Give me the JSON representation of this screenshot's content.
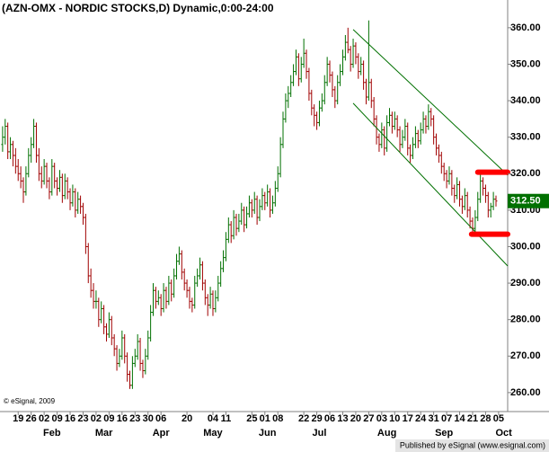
{
  "chart_data": {
    "type": "ohlc",
    "title": "(AZN-OMX - NORDIC STOCKS,D) Dynamic,0:00-24:00",
    "watermark": "© eSignal, 2009",
    "footer": "Published by eSignal (www.esignal.com)",
    "up_color": "#007000",
    "down_color": "#a00000",
    "ylim": [
      254.8,
      367.6
    ],
    "xlim": [
      -1,
      194.5
    ],
    "yticks": [
      {
        "value": 260,
        "label": "260.00"
      },
      {
        "value": 270,
        "label": "270.00"
      },
      {
        "value": 280,
        "label": "280.00"
      },
      {
        "value": 290,
        "label": "290.00"
      },
      {
        "value": 300,
        "label": "300.00"
      },
      {
        "value": 310,
        "label": "310.00"
      },
      {
        "value": 320,
        "label": "320.00"
      },
      {
        "value": 330,
        "label": "330.00"
      },
      {
        "value": 340,
        "label": "340.00"
      },
      {
        "value": 350,
        "label": "350.00"
      },
      {
        "value": 360,
        "label": "360.00"
      }
    ],
    "xticks": [
      {
        "value": 6,
        "label": "19"
      },
      {
        "value": 11,
        "label": "26"
      },
      {
        "value": 16,
        "label": "02"
      },
      {
        "value": 21,
        "label": "09"
      },
      {
        "value": 26,
        "label": "16"
      },
      {
        "value": 31,
        "label": "23"
      },
      {
        "value": 36,
        "label": "02"
      },
      {
        "value": 41,
        "label": "09"
      },
      {
        "value": 46,
        "label": "16"
      },
      {
        "value": 51,
        "label": "23"
      },
      {
        "value": 56,
        "label": "30"
      },
      {
        "value": 61,
        "label": "06"
      },
      {
        "value": 71,
        "label": "20"
      },
      {
        "value": 81,
        "label": "04"
      },
      {
        "value": 86,
        "label": "11"
      },
      {
        "value": 96,
        "label": "25"
      },
      {
        "value": 101,
        "label": "01"
      },
      {
        "value": 106,
        "label": "08"
      },
      {
        "value": 116,
        "label": "22"
      },
      {
        "value": 121,
        "label": "29"
      },
      {
        "value": 126,
        "label": "06"
      },
      {
        "value": 131,
        "label": "13"
      },
      {
        "value": 136,
        "label": "20"
      },
      {
        "value": 141,
        "label": "27"
      },
      {
        "value": 146,
        "label": "03"
      },
      {
        "value": 151,
        "label": "10"
      },
      {
        "value": 156,
        "label": "17"
      },
      {
        "value": 161,
        "label": "24"
      },
      {
        "value": 166,
        "label": "31"
      },
      {
        "value": 171,
        "label": "07"
      },
      {
        "value": 176,
        "label": "14"
      },
      {
        "value": 181,
        "label": "21"
      },
      {
        "value": 186,
        "label": "28"
      },
      {
        "value": 191,
        "label": "05"
      }
    ],
    "month_ticks": [
      {
        "value": 19,
        "label": "Feb"
      },
      {
        "value": 39,
        "label": "Mar"
      },
      {
        "value": 61,
        "label": "Apr"
      },
      {
        "value": 81,
        "label": "May"
      },
      {
        "value": 102,
        "label": "Jun"
      },
      {
        "value": 122,
        "label": "Jul"
      },
      {
        "value": 148,
        "label": "Aug"
      },
      {
        "value": 170,
        "label": "Sep"
      },
      {
        "value": 193,
        "label": "Oct"
      }
    ],
    "last_label": {
      "value": 312.5,
      "label": "312.50"
    },
    "trend_lines": [
      {
        "color": "#007000",
        "points": [
          [
            135,
            359.5
          ],
          [
            194.5,
            319.6
          ]
        ]
      },
      {
        "color": "#007000",
        "points": [
          [
            135,
            339.3
          ],
          [
            194.5,
            294.7
          ]
        ]
      }
    ],
    "level_lines": [
      {
        "color": "#ff0000",
        "value": 320.4,
        "from": 183
      },
      {
        "color": "#ff0000",
        "value": 303.4,
        "from": 180.6
      }
    ],
    "ohlc": [
      [
        328,
        333,
        326,
        330
      ],
      [
        330,
        335,
        328,
        333
      ],
      [
        333,
        334,
        324,
        326
      ],
      [
        326,
        330,
        324,
        328
      ],
      [
        328,
        329,
        322,
        325
      ],
      [
        325,
        327,
        320,
        322
      ],
      [
        322,
        324,
        318,
        320
      ],
      [
        320,
        322,
        316,
        318
      ],
      [
        318,
        319,
        312,
        315
      ],
      [
        315,
        322,
        314,
        320
      ],
      [
        320,
        327,
        319,
        325
      ],
      [
        325,
        330,
        323,
        328
      ],
      [
        328,
        335,
        327,
        333
      ],
      [
        333,
        334,
        323,
        325
      ],
      [
        325,
        327,
        318,
        320
      ],
      [
        320,
        322,
        316,
        318
      ],
      [
        318,
        324,
        317,
        322
      ],
      [
        322,
        323,
        316,
        318
      ],
      [
        318,
        319,
        313,
        315
      ],
      [
        315,
        324,
        314,
        322
      ],
      [
        322,
        323,
        316,
        318
      ],
      [
        318,
        319,
        314,
        316
      ],
      [
        316,
        321,
        315,
        319
      ],
      [
        319,
        320,
        312,
        314
      ],
      [
        314,
        320,
        313,
        318
      ],
      [
        318,
        319,
        313,
        315
      ],
      [
        315,
        316,
        310,
        312
      ],
      [
        312,
        317,
        311,
        315
      ],
      [
        315,
        316,
        308,
        310
      ],
      [
        310,
        315,
        309,
        313
      ],
      [
        313,
        314,
        309,
        311
      ],
      [
        311,
        312,
        306,
        308
      ],
      [
        308,
        309,
        298,
        300
      ],
      [
        300,
        301,
        290,
        292
      ],
      [
        292,
        294,
        286,
        288
      ],
      [
        288,
        290,
        283,
        285
      ],
      [
        285,
        288,
        283,
        285
      ],
      [
        285,
        286,
        278,
        280
      ],
      [
        280,
        285,
        279,
        283
      ],
      [
        283,
        284,
        276,
        278
      ],
      [
        278,
        279,
        274,
        276
      ],
      [
        276,
        282,
        275,
        280
      ],
      [
        280,
        281,
        273,
        275
      ],
      [
        275,
        276,
        270,
        272
      ],
      [
        272,
        273,
        266,
        268
      ],
      [
        268,
        272,
        267,
        270
      ],
      [
        270,
        277,
        269,
        275
      ],
      [
        275,
        276,
        268,
        270
      ],
      [
        270,
        271,
        263,
        265
      ],
      [
        265,
        266,
        261,
        262
      ],
      [
        262,
        270,
        261,
        268
      ],
      [
        268,
        272,
        267,
        270
      ],
      [
        270,
        276,
        269,
        274
      ],
      [
        274,
        275,
        266,
        268
      ],
      [
        268,
        269,
        264,
        266
      ],
      [
        266,
        272,
        265,
        270
      ],
      [
        270,
        277,
        269,
        275
      ],
      [
        275,
        284,
        274,
        282
      ],
      [
        282,
        290,
        281,
        288
      ],
      [
        288,
        289,
        283,
        285
      ],
      [
        285,
        288,
        284,
        286
      ],
      [
        286,
        287,
        281,
        283
      ],
      [
        283,
        290,
        282,
        288
      ],
      [
        288,
        289,
        283,
        285
      ],
      [
        285,
        292,
        284,
        290
      ],
      [
        290,
        291,
        285,
        287
      ],
      [
        287,
        294,
        286,
        292
      ],
      [
        292,
        298,
        291,
        296
      ],
      [
        296,
        300,
        295,
        298
      ],
      [
        298,
        299,
        291,
        293
      ],
      [
        293,
        294,
        288,
        290
      ],
      [
        290,
        291,
        286,
        288
      ],
      [
        288,
        289,
        283,
        285
      ],
      [
        285,
        286,
        282,
        284
      ],
      [
        284,
        292,
        283,
        290
      ],
      [
        290,
        294,
        289,
        292
      ],
      [
        292,
        297,
        291,
        295
      ],
      [
        295,
        296,
        288,
        290
      ],
      [
        290,
        291,
        284,
        286
      ],
      [
        286,
        287,
        281,
        284
      ],
      [
        284,
        289,
        283,
        287
      ],
      [
        287,
        288,
        281,
        283
      ],
      [
        283,
        288,
        282,
        286
      ],
      [
        286,
        292,
        285,
        290
      ],
      [
        290,
        296,
        289,
        294
      ],
      [
        294,
        299,
        293,
        297
      ],
      [
        297,
        304,
        296,
        302
      ],
      [
        302,
        308,
        301,
        306
      ],
      [
        306,
        307,
        301,
        303
      ],
      [
        303,
        310,
        302,
        308
      ],
      [
        308,
        309,
        303,
        305
      ],
      [
        305,
        309,
        304,
        307
      ],
      [
        307,
        312,
        306,
        310
      ],
      [
        310,
        311,
        304,
        306
      ],
      [
        306,
        311,
        305,
        309
      ],
      [
        309,
        314,
        308,
        312
      ],
      [
        312,
        313,
        308,
        310
      ],
      [
        310,
        315,
        309,
        313
      ],
      [
        313,
        314,
        306,
        308
      ],
      [
        308,
        313,
        307,
        311
      ],
      [
        311,
        316,
        310,
        314
      ],
      [
        314,
        315,
        310,
        312
      ],
      [
        312,
        317,
        311,
        315
      ],
      [
        315,
        316,
        308,
        310
      ],
      [
        310,
        314,
        309,
        312
      ],
      [
        312,
        318,
        311,
        316
      ],
      [
        316,
        322,
        315,
        320
      ],
      [
        320,
        330,
        319,
        328
      ],
      [
        328,
        337,
        327,
        335
      ],
      [
        335,
        342,
        334,
        340
      ],
      [
        340,
        344,
        338,
        342
      ],
      [
        342,
        347,
        341,
        345
      ],
      [
        345,
        350,
        344,
        348
      ],
      [
        348,
        354,
        347,
        352
      ],
      [
        352,
        353,
        344,
        346
      ],
      [
        346,
        352,
        345,
        350
      ],
      [
        350,
        357,
        349,
        353
      ],
      [
        353,
        354,
        346,
        348
      ],
      [
        348,
        349,
        340,
        342
      ],
      [
        342,
        343,
        336,
        338
      ],
      [
        338,
        339,
        333,
        336
      ],
      [
        336,
        337,
        332,
        334
      ],
      [
        334,
        340,
        333,
        338
      ],
      [
        338,
        342,
        337,
        340
      ],
      [
        340,
        347,
        339,
        345
      ],
      [
        345,
        352,
        344,
        350
      ],
      [
        350,
        351,
        345,
        347
      ],
      [
        347,
        348,
        341,
        343
      ],
      [
        343,
        344,
        338,
        340
      ],
      [
        340,
        347,
        339,
        345
      ],
      [
        345,
        350,
        344,
        348
      ],
      [
        348,
        354,
        347,
        352
      ],
      [
        352,
        358,
        351,
        356
      ],
      [
        356,
        360,
        353,
        354
      ],
      [
        354,
        355,
        348,
        350
      ],
      [
        350,
        357,
        349,
        355
      ],
      [
        355,
        356,
        350,
        352
      ],
      [
        352,
        353,
        346,
        348
      ],
      [
        348,
        352,
        347,
        350
      ],
      [
        350,
        351,
        343,
        345
      ],
      [
        345,
        346,
        339,
        341
      ],
      [
        341,
        362,
        340,
        345
      ],
      [
        345,
        346,
        338,
        340
      ],
      [
        340,
        341,
        333,
        335
      ],
      [
        335,
        336,
        328,
        330
      ],
      [
        330,
        331,
        326,
        328
      ],
      [
        328,
        334,
        327,
        332
      ],
      [
        332,
        333,
        325,
        327
      ],
      [
        327,
        336,
        326,
        334
      ],
      [
        334,
        338,
        333,
        336
      ],
      [
        336,
        337,
        331,
        333
      ],
      [
        333,
        337,
        332,
        335
      ],
      [
        335,
        336,
        330,
        332
      ],
      [
        332,
        333,
        326,
        328
      ],
      [
        328,
        332,
        327,
        330
      ],
      [
        330,
        335,
        329,
        333
      ],
      [
        333,
        334,
        325,
        327
      ],
      [
        327,
        328,
        323,
        325
      ],
      [
        325,
        330,
        324,
        328
      ],
      [
        328,
        333,
        327,
        331
      ],
      [
        331,
        332,
        327,
        329
      ],
      [
        329,
        334,
        328,
        332
      ],
      [
        332,
        337,
        331,
        335
      ],
      [
        335,
        336,
        331,
        333
      ],
      [
        333,
        339,
        332,
        337
      ],
      [
        337,
        338,
        333,
        335
      ],
      [
        335,
        336,
        328,
        330
      ],
      [
        330,
        331,
        325,
        327
      ],
      [
        327,
        328,
        323,
        325
      ],
      [
        325,
        326,
        320,
        322
      ],
      [
        322,
        323,
        318,
        320
      ],
      [
        320,
        321,
        316,
        318
      ],
      [
        318,
        322,
        317,
        320
      ],
      [
        320,
        321,
        314,
        316
      ],
      [
        316,
        317,
        312,
        314
      ],
      [
        314,
        319,
        313,
        317
      ],
      [
        317,
        318,
        311,
        313
      ],
      [
        313,
        314,
        309,
        311
      ],
      [
        311,
        316,
        310,
        314
      ],
      [
        314,
        315,
        308,
        310
      ],
      [
        310,
        311,
        305,
        307
      ],
      [
        307,
        308,
        303,
        305
      ],
      [
        305,
        310,
        304,
        308
      ],
      [
        308,
        315,
        307,
        313
      ],
      [
        313,
        320,
        312,
        318
      ],
      [
        318,
        319,
        314,
        316
      ],
      [
        316,
        317,
        312,
        314
      ],
      [
        314,
        315,
        308,
        310
      ],
      [
        310,
        312,
        308,
        311
      ],
      [
        311,
        315,
        310,
        313
      ],
      [
        313,
        314,
        311,
        312.5
      ]
    ]
  }
}
